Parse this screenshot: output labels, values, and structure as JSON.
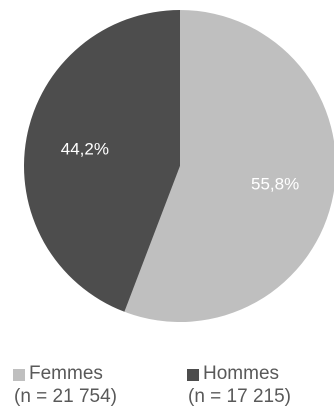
{
  "chart_data": {
    "type": "pie",
    "title": "",
    "series": [
      {
        "name": "Femmes",
        "value": 55.8,
        "value_label": "55,8%",
        "count_label": "(n = 21 754)",
        "color": "#bfbfbf"
      },
      {
        "name": "Hommes",
        "value": 44.2,
        "value_label": "44,2%",
        "count_label": "(n = 17 215)",
        "color": "#4d4d4d"
      }
    ],
    "start_angle_deg": 0,
    "direction": "clockwise",
    "legend_position": "bottom"
  }
}
